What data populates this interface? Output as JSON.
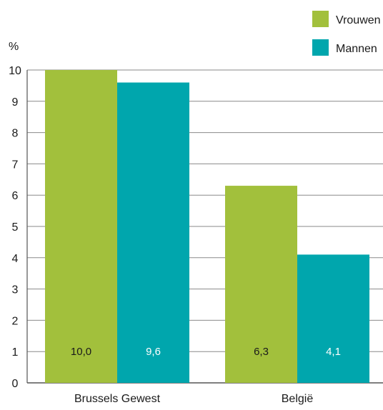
{
  "chart_data": {
    "type": "bar",
    "unit_label": "%",
    "categories": [
      "Brussels Gewest",
      "België"
    ],
    "series": [
      {
        "name": "Vrouwen",
        "values": [
          10.0,
          6.3
        ],
        "labels": [
          "10,0",
          "6,3"
        ],
        "color": "#a2c03c",
        "label_color": "#1a1a1a"
      },
      {
        "name": "Mannen",
        "values": [
          9.6,
          4.1
        ],
        "labels": [
          "9,6",
          "4,1"
        ],
        "color": "#00a6ad",
        "label_color": "#ffffff"
      }
    ],
    "y_ticks": [
      "0",
      "1",
      "2",
      "3",
      "4",
      "5",
      "6",
      "7",
      "8",
      "9",
      "10"
    ],
    "ylim": [
      0,
      10
    ],
    "grid": true,
    "legend_position": "top-right"
  }
}
